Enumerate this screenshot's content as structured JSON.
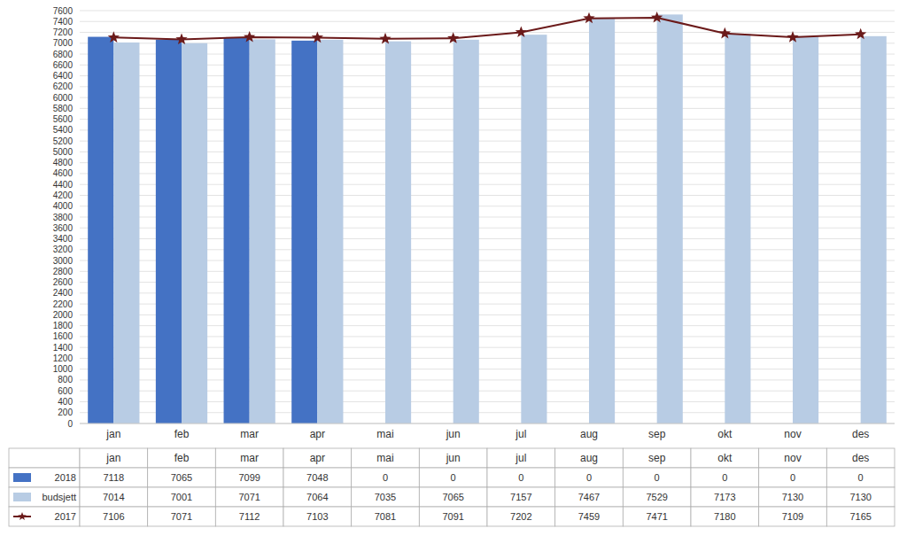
{
  "chart_data": {
    "type": "bar",
    "categories": [
      "jan",
      "feb",
      "mar",
      "apr",
      "mai",
      "jun",
      "jul",
      "aug",
      "sep",
      "okt",
      "nov",
      "des"
    ],
    "series": [
      {
        "name": "2018",
        "type": "bar",
        "color": "#4472C4",
        "values": [
          7118,
          7065,
          7099,
          7048,
          0,
          0,
          0,
          0,
          0,
          0,
          0,
          0
        ]
      },
      {
        "name": "budsjett",
        "type": "bar",
        "color": "#B8CCE4",
        "values": [
          7014,
          7001,
          7071,
          7064,
          7035,
          7065,
          7157,
          7467,
          7529,
          7173,
          7130,
          7130
        ]
      },
      {
        "name": "2017",
        "type": "line",
        "color": "#6B1A1A",
        "marker": "star",
        "values": [
          7106,
          7071,
          7112,
          7103,
          7081,
          7091,
          7202,
          7459,
          7471,
          7180,
          7109,
          7165
        ]
      }
    ],
    "ylim": [
      0,
      7600
    ],
    "yticks": [
      0,
      200,
      400,
      600,
      800,
      1000,
      1200,
      1400,
      1600,
      1800,
      2000,
      2200,
      2400,
      2600,
      2800,
      3000,
      3200,
      3400,
      3600,
      3800,
      4000,
      4200,
      4400,
      4600,
      4800,
      5000,
      5200,
      5400,
      5600,
      5800,
      6000,
      6200,
      6400,
      6600,
      6800,
      7000,
      7200,
      7400,
      7600
    ],
    "grid": true
  }
}
